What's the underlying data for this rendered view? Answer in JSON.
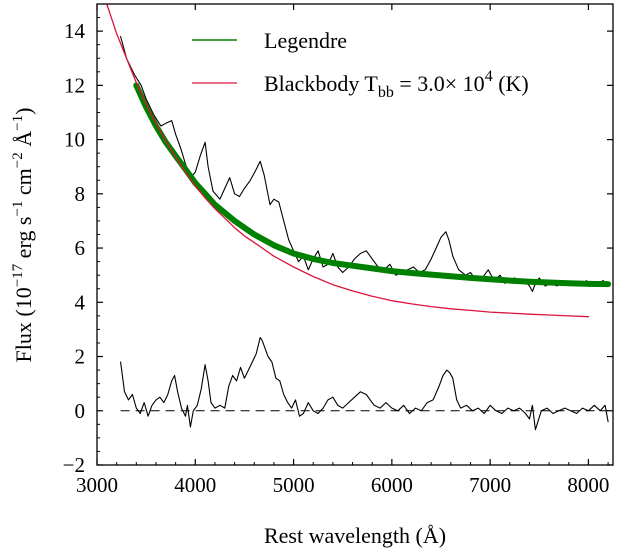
{
  "chart_data": {
    "type": "line",
    "xlabel": "Rest wavelength (Å)",
    "ylabel_parts": {
      "a": "Flux (10",
      "b": "−17",
      "c": " erg s",
      "d": "−1",
      "e": " cm",
      "f": "−2",
      "g": " Å",
      "h": "−1",
      "i": ")"
    },
    "xlim": [
      3000,
      8250
    ],
    "ylim": [
      -2,
      15
    ],
    "xticks": [
      3000,
      4000,
      5000,
      6000,
      7000,
      8000
    ],
    "yticks": [
      -2,
      0,
      2,
      4,
      6,
      8,
      10,
      12,
      14
    ],
    "xtick_labels": [
      "3000",
      "4000",
      "5000",
      "6000",
      "7000",
      "8000"
    ],
    "ytick_labels": [
      "−2",
      "0",
      "2",
      "4",
      "6",
      "8",
      "10",
      "12",
      "14"
    ],
    "grid": false,
    "legend_position": "top-center",
    "legend": {
      "legendre": "Legendre",
      "bb_main": "Blackbody T",
      "bb_sub": "bb",
      "bb_eq": " = 3.0× 10",
      "bb_sup": "4",
      "bb_unit": " (K)"
    },
    "colors": {
      "legendre": "#008000",
      "blackbody": "#dc143c",
      "spectrum": "#000000",
      "zero_line": "#000000"
    },
    "series": [
      {
        "key": "spectrum",
        "style": "thin-black",
        "x": [
          3240,
          3300,
          3380,
          3450,
          3500,
          3580,
          3650,
          3700,
          3760,
          3800,
          3850,
          3900,
          3950,
          4000,
          4050,
          4100,
          4130,
          4180,
          4250,
          4300,
          4350,
          4400,
          4450,
          4500,
          4560,
          4620,
          4660,
          4700,
          4760,
          4800,
          4850,
          4900,
          4950,
          5000,
          5050,
          5100,
          5150,
          5200,
          5250,
          5300,
          5350,
          5400,
          5450,
          5500,
          5560,
          5620,
          5680,
          5740,
          5800,
          5860,
          5920,
          5980,
          6040,
          6100,
          6160,
          6220,
          6280,
          6340,
          6400,
          6450,
          6500,
          6550,
          6580,
          6620,
          6680,
          6750,
          6800,
          6860,
          6920,
          6980,
          7040,
          7100,
          7150,
          7200,
          7250,
          7300,
          7350,
          7400,
          7430,
          7460,
          7500,
          7560,
          7620,
          7680,
          7740,
          7800,
          7860,
          7920,
          7980,
          8040,
          8100,
          8150,
          8200
        ],
        "y": [
          13.8,
          13.0,
          12.4,
          12.0,
          11.5,
          10.9,
          10.5,
          10.6,
          10.7,
          10.2,
          9.7,
          9.1,
          8.6,
          8.8,
          9.4,
          9.9,
          9.0,
          8.1,
          7.8,
          8.2,
          8.6,
          8.0,
          7.9,
          8.2,
          8.5,
          8.9,
          9.2,
          8.7,
          7.6,
          7.8,
          7.7,
          7.0,
          6.3,
          5.9,
          5.5,
          5.7,
          5.2,
          5.6,
          5.9,
          5.3,
          5.4,
          5.8,
          5.3,
          5.1,
          5.3,
          5.6,
          5.8,
          5.9,
          5.6,
          5.3,
          5.2,
          5.4,
          5.0,
          5.1,
          5.2,
          5.3,
          5.1,
          5.2,
          5.6,
          6.0,
          6.4,
          6.6,
          6.3,
          5.7,
          5.2,
          5.0,
          5.1,
          4.8,
          4.9,
          5.2,
          4.8,
          5.0,
          4.7,
          4.8,
          4.9,
          4.7,
          4.8,
          4.6,
          4.4,
          4.7,
          4.9,
          4.6,
          4.7,
          4.6,
          4.8,
          4.7,
          4.7,
          4.6,
          4.8,
          4.6,
          4.7,
          4.8,
          4.6
        ]
      },
      {
        "key": "residual",
        "style": "thin-black",
        "x": [
          3240,
          3280,
          3320,
          3360,
          3400,
          3440,
          3480,
          3520,
          3560,
          3600,
          3640,
          3680,
          3720,
          3760,
          3790,
          3820,
          3860,
          3900,
          3920,
          3950,
          3980,
          4020,
          4060,
          4100,
          4130,
          4160,
          4200,
          4250,
          4300,
          4340,
          4380,
          4420,
          4460,
          4500,
          4540,
          4580,
          4620,
          4660,
          4680,
          4710,
          4740,
          4780,
          4820,
          4860,
          4900,
          4940,
          4980,
          5020,
          5060,
          5100,
          5150,
          5200,
          5250,
          5300,
          5350,
          5400,
          5450,
          5500,
          5560,
          5620,
          5680,
          5740,
          5780,
          5820,
          5880,
          5940,
          6000,
          6060,
          6120,
          6180,
          6240,
          6300,
          6360,
          6420,
          6480,
          6520,
          6560,
          6590,
          6620,
          6660,
          6700,
          6760,
          6820,
          6880,
          6940,
          7000,
          7060,
          7120,
          7180,
          7240,
          7300,
          7360,
          7400,
          7430,
          7460,
          7520,
          7580,
          7640,
          7700,
          7760,
          7820,
          7880,
          7940,
          8000,
          8060,
          8120,
          8170,
          8200
        ],
        "y": [
          1.8,
          0.7,
          0.4,
          0.6,
          0.1,
          -0.1,
          0.3,
          -0.2,
          0.2,
          0.4,
          0.5,
          0.3,
          0.6,
          1.1,
          1.3,
          0.7,
          0.1,
          -0.2,
          0.2,
          -0.6,
          0.0,
          0.2,
          0.8,
          1.7,
          1.1,
          0.3,
          0.1,
          0.2,
          0.1,
          0.9,
          1.3,
          1.1,
          1.6,
          1.2,
          1.5,
          1.8,
          2.1,
          2.7,
          2.6,
          2.3,
          2.0,
          1.8,
          1.2,
          1.1,
          0.6,
          0.3,
          0.1,
          0.4,
          -0.2,
          -0.1,
          0.3,
          0.0,
          -0.1,
          0.1,
          0.4,
          0.5,
          0.2,
          0.1,
          0.3,
          0.5,
          0.7,
          0.6,
          0.4,
          0.2,
          0.1,
          0.3,
          0.1,
          0.0,
          0.2,
          -0.1,
          0.1,
          0.0,
          0.3,
          0.4,
          0.9,
          1.3,
          1.5,
          1.4,
          1.2,
          0.4,
          0.1,
          0.2,
          0.0,
          0.1,
          -0.1,
          0.2,
          0.0,
          -0.1,
          0.1,
          0.0,
          0.1,
          -0.1,
          -0.3,
          0.2,
          -0.7,
          0.0,
          0.1,
          -0.1,
          0.0,
          0.1,
          0.0,
          -0.1,
          0.1,
          0.0,
          0.2,
          0.0,
          0.2,
          -0.4
        ]
      },
      {
        "key": "legendre",
        "style": "thick-green",
        "x": [
          3400,
          3500,
          3600,
          3700,
          3800,
          3900,
          4000,
          4100,
          4200,
          4300,
          4400,
          4500,
          4600,
          4700,
          4800,
          4900,
          5000,
          5200,
          5400,
          5600,
          5800,
          6000,
          6200,
          6400,
          6600,
          6800,
          7000,
          7200,
          7400,
          7600,
          7800,
          8000,
          8200
        ],
        "y": [
          12.0,
          11.2,
          10.5,
          9.9,
          9.4,
          8.9,
          8.4,
          8.0,
          7.6,
          7.3,
          7.0,
          6.75,
          6.5,
          6.3,
          6.1,
          5.95,
          5.8,
          5.6,
          5.45,
          5.35,
          5.25,
          5.15,
          5.08,
          5.02,
          4.96,
          4.9,
          4.85,
          4.8,
          4.76,
          4.73,
          4.7,
          4.68,
          4.67
        ]
      },
      {
        "key": "blackbody",
        "style": "thin-crimson",
        "x": [
          3000,
          3100,
          3200,
          3300,
          3400,
          3500,
          3600,
          3700,
          3800,
          3900,
          4000,
          4100,
          4200,
          4300,
          4400,
          4500,
          4600,
          4700,
          4800,
          4900,
          5000,
          5200,
          5400,
          5600,
          5800,
          6000,
          6200,
          6400,
          6600,
          6800,
          7000,
          7200,
          7400,
          7600,
          7800,
          8000
        ],
        "y": [
          16.3,
          15.0,
          13.9,
          13.0,
          12.1,
          11.3,
          10.6,
          9.95,
          9.35,
          8.8,
          8.3,
          7.85,
          7.45,
          7.1,
          6.75,
          6.45,
          6.2,
          5.95,
          5.7,
          5.5,
          5.3,
          4.95,
          4.65,
          4.42,
          4.22,
          4.06,
          3.94,
          3.84,
          3.76,
          3.7,
          3.64,
          3.6,
          3.56,
          3.53,
          3.5,
          3.47
        ]
      }
    ],
    "reference_line": {
      "y": 0,
      "style": "dashed"
    }
  }
}
